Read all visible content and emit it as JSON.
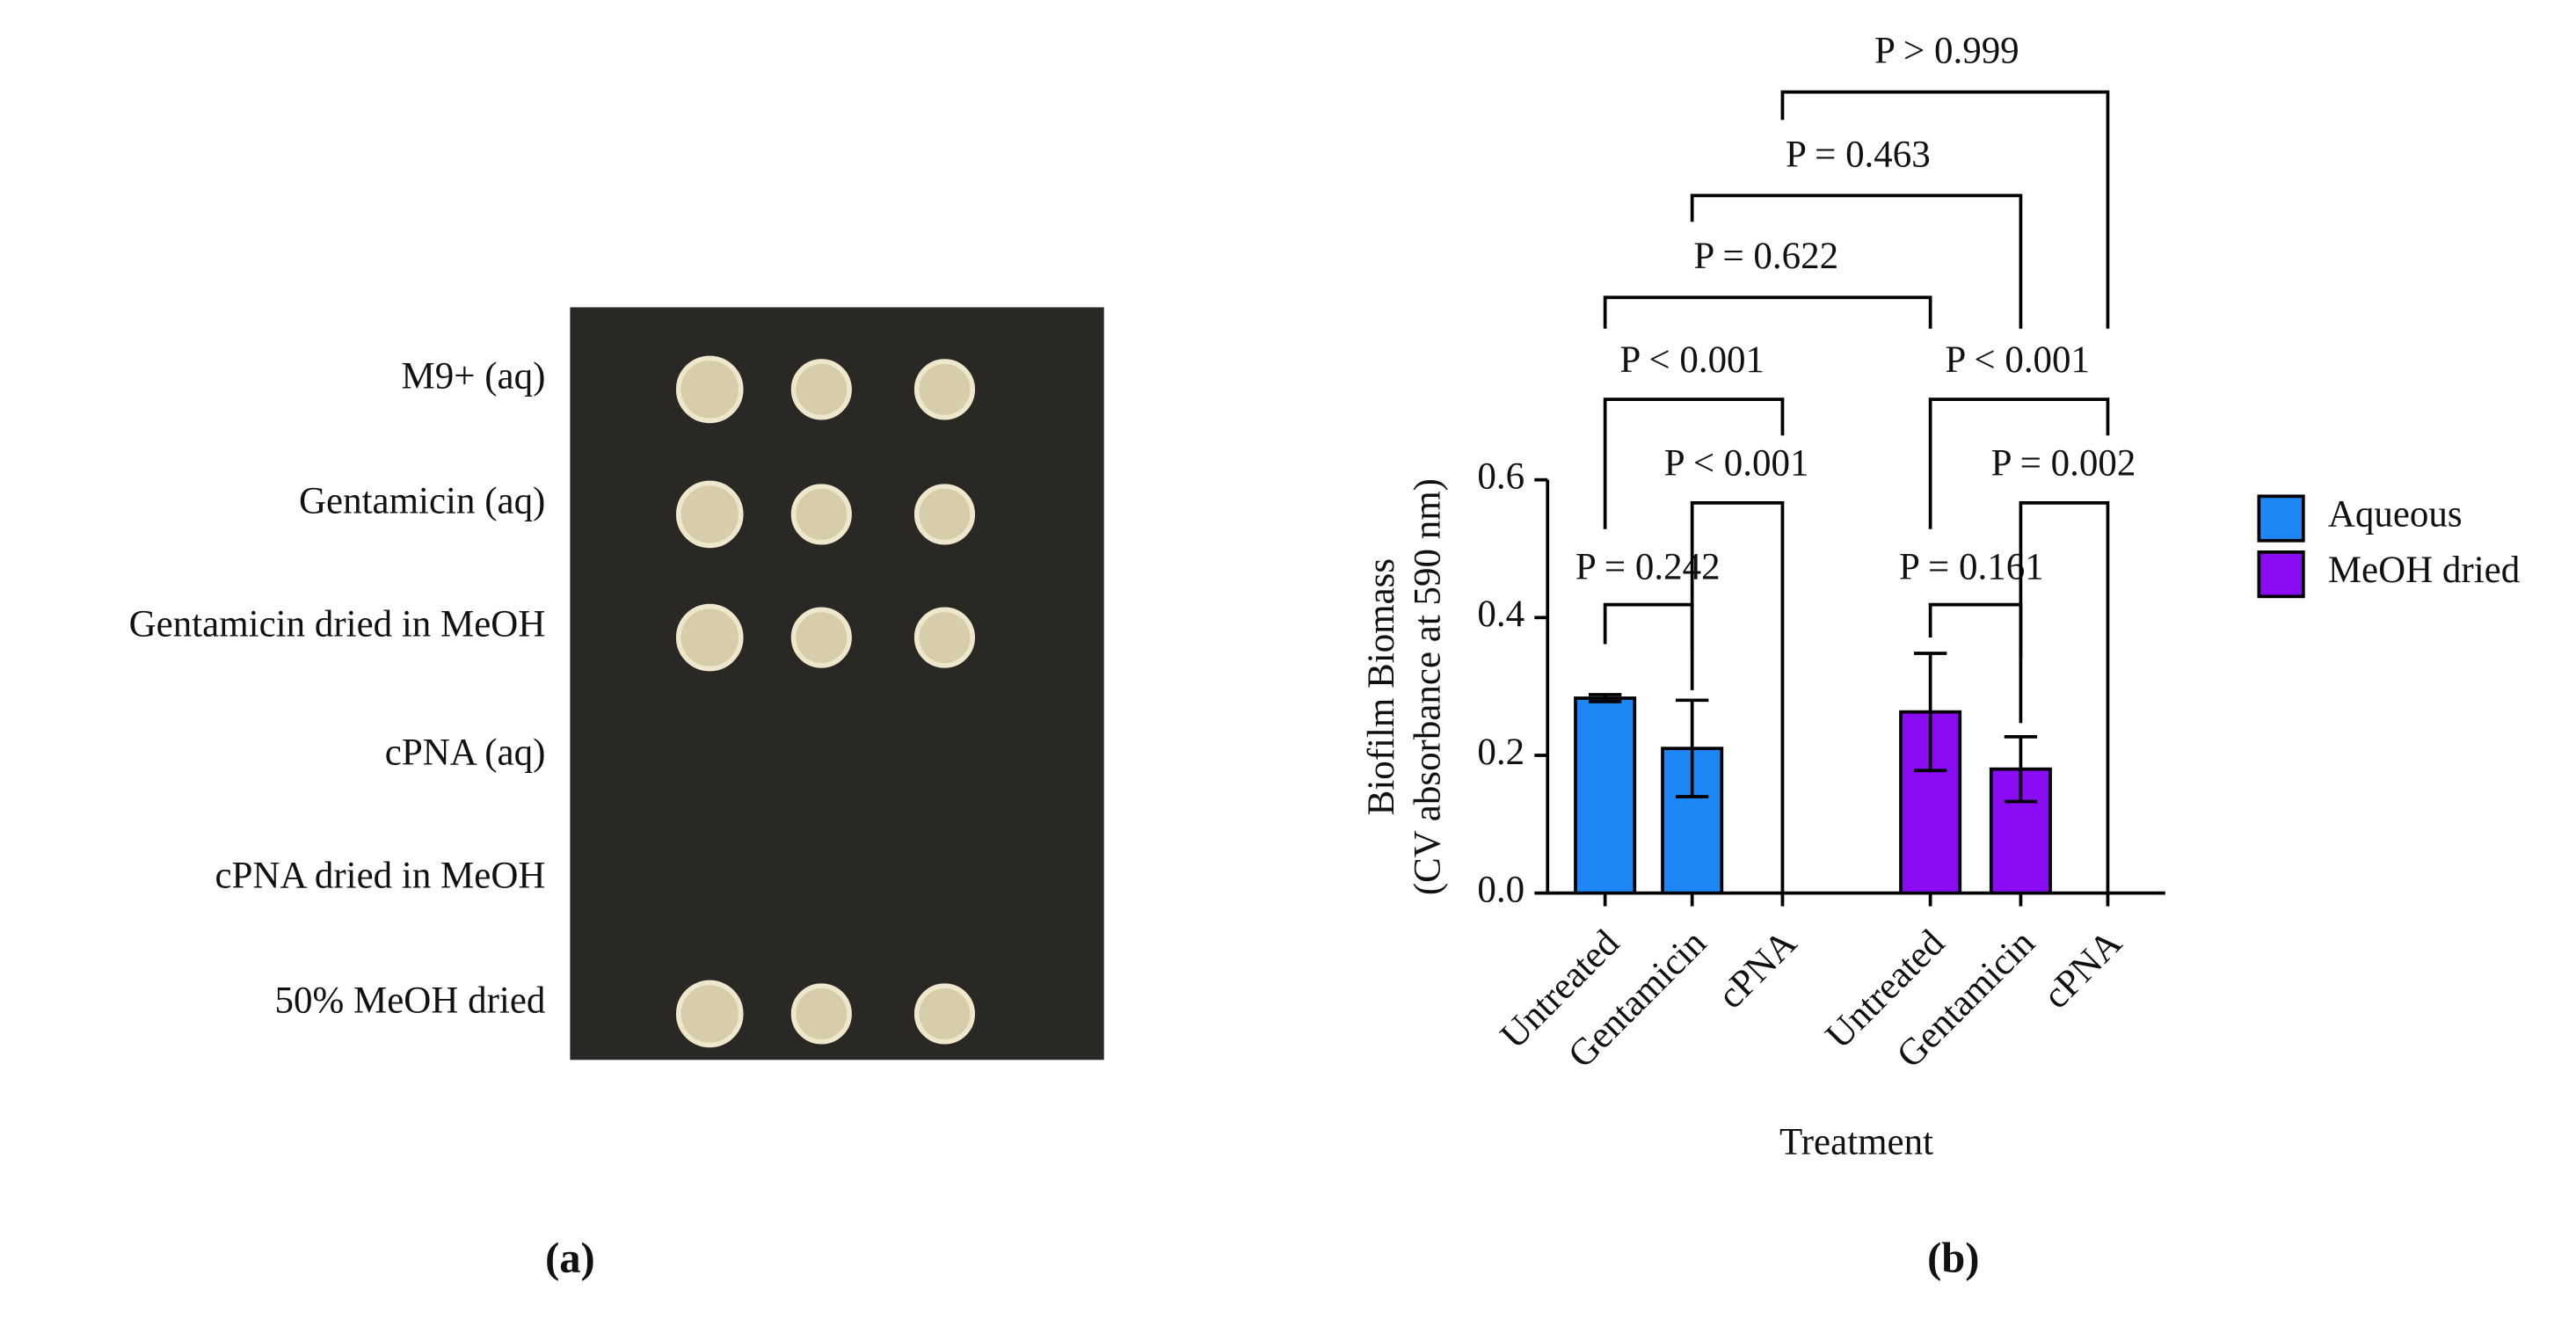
{
  "panel_a": {
    "label": "(a)",
    "rows": [
      "M9+ (aq)",
      "Gentamicin (aq)",
      "Gentamicin dried in MeOH",
      "cPNA (aq)",
      "cPNA dried in MeOH",
      "50% MeOH dried"
    ]
  },
  "chart_data": {
    "type": "bar",
    "panel_label": "(b)",
    "y_label": [
      "Biofilm Biomass",
      "(CV absorbance at 590 nm)"
    ],
    "x_label": "Treatment",
    "categories": [
      "Untreated",
      "Gentamicin",
      "cPNA"
    ],
    "series": [
      {
        "name": "Aqueous",
        "color": "#1f87f5",
        "values": [
          0.283,
          0.21,
          0
        ],
        "errors": [
          0.005,
          0.07,
          null
        ]
      },
      {
        "name": "MeOH dried",
        "color": "#8a0cf2",
        "values": [
          0.263,
          0.18,
          0
        ],
        "errors": [
          0.085,
          0.047,
          null
        ]
      }
    ],
    "ylim": [
      0,
      0.6
    ],
    "yticks": [
      {
        "value": 0,
        "label": "0.0"
      },
      0.2,
      0.4,
      0.6
    ],
    "annotations": [
      "P = 0.242",
      "P < 0.001",
      "P < 0.001",
      "P = 0.161",
      "P = 0.002",
      "P < 0.001",
      "P = 0.622",
      "P = 0.463",
      "P > 0.999"
    ],
    "legend": "right"
  }
}
